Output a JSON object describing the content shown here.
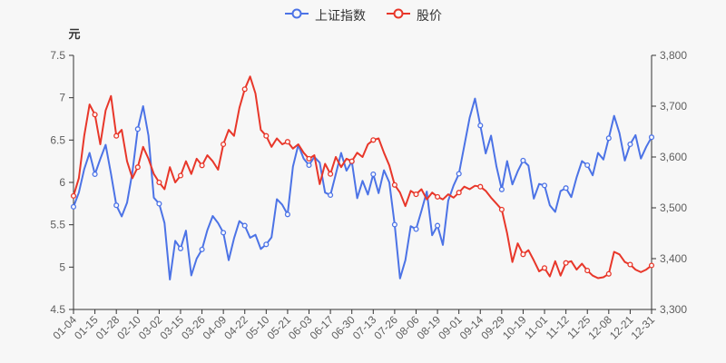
{
  "legend": {
    "items": [
      {
        "label": "上证指数",
        "color": "#4c73e6"
      },
      {
        "label": "股价",
        "color": "#e8372a"
      }
    ]
  },
  "chart_data": {
    "type": "line",
    "title": "",
    "unit_label": "元",
    "background": "#f7f7f7",
    "grid": false,
    "legend_position": "top-center",
    "marker_every": 4,
    "categories": [
      "01-04",
      "01-15",
      "01-28",
      "02-10",
      "03-02",
      "03-15",
      "03-26",
      "04-09",
      "04-22",
      "05-10",
      "05-21",
      "06-03",
      "06-17",
      "06-30",
      "07-13",
      "07-26",
      "08-06",
      "08-19",
      "09-01",
      "09-14",
      "09-29",
      "10-19",
      "11-01",
      "11-12",
      "11-25",
      "12-08",
      "12-21",
      "12-31"
    ],
    "axes": {
      "left": {
        "unit": "元",
        "min": 4.5,
        "max": 7.5,
        "ticks": [
          "7.5",
          "7",
          "6.5",
          "6",
          "5.5",
          "5",
          "4.5"
        ]
      },
      "right": {
        "min": 3300,
        "max": 3800,
        "ticks": [
          "3,800",
          "3,700",
          "3,600",
          "3,500",
          "3,400",
          "3,300"
        ]
      }
    },
    "series": [
      {
        "name": "上证指数",
        "axis": "right",
        "color": "#4c73e6",
        "values": [
          3502,
          3530,
          3576,
          3608,
          3566,
          3596,
          3624,
          3567,
          3505,
          3483,
          3510,
          3570,
          3655,
          3700,
          3642,
          3520,
          3508,
          3470,
          3359,
          3435,
          3420,
          3455,
          3367,
          3400,
          3418,
          3456,
          3484,
          3470,
          3451,
          3397,
          3440,
          3474,
          3465,
          3441,
          3447,
          3419,
          3428,
          3442,
          3517,
          3506,
          3487,
          3581,
          3624,
          3597,
          3584,
          3600,
          3589,
          3530,
          3525,
          3566,
          3608,
          3573,
          3591,
          3519,
          3553,
          3526,
          3566,
          3529,
          3574,
          3550,
          3467,
          3361,
          3397,
          3464,
          3458,
          3494,
          3532,
          3446,
          3465,
          3427,
          3514,
          3544,
          3567,
          3622,
          3677,
          3715,
          3662,
          3607,
          3642,
          3582,
          3536,
          3592,
          3546,
          3572,
          3593,
          3583,
          3518,
          3547,
          3544,
          3505,
          3492,
          3533,
          3539,
          3521,
          3560,
          3592,
          3584,
          3564,
          3608,
          3595,
          3637,
          3681,
          3647,
          3593,
          3625,
          3643,
          3597,
          3620,
          3639
        ]
      },
      {
        "name": "股价",
        "axis": "left",
        "color": "#e8372a",
        "values": [
          5.84,
          6.05,
          6.55,
          6.92,
          6.8,
          6.45,
          6.85,
          7.02,
          6.55,
          6.62,
          6.25,
          6.05,
          6.18,
          6.42,
          6.28,
          6.1,
          6.0,
          5.92,
          6.18,
          6.0,
          6.08,
          6.25,
          6.1,
          6.28,
          6.2,
          6.32,
          6.25,
          6.15,
          6.45,
          6.62,
          6.55,
          6.88,
          7.1,
          7.25,
          7.05,
          6.62,
          6.55,
          6.42,
          6.52,
          6.45,
          6.48,
          6.4,
          6.45,
          6.35,
          6.28,
          6.32,
          5.98,
          6.22,
          6.1,
          6.3,
          6.18,
          6.28,
          6.25,
          6.35,
          6.3,
          6.45,
          6.5,
          6.52,
          6.35,
          6.2,
          5.97,
          5.88,
          5.72,
          5.9,
          5.86,
          5.92,
          5.8,
          5.88,
          5.83,
          5.8,
          5.86,
          5.82,
          5.88,
          5.95,
          5.92,
          5.96,
          5.95,
          5.9,
          5.82,
          5.75,
          5.68,
          5.4,
          5.06,
          5.28,
          5.15,
          5.2,
          5.08,
          4.95,
          4.99,
          4.89,
          5.07,
          4.9,
          5.05,
          5.07,
          4.97,
          5.04,
          4.96,
          4.9,
          4.87,
          4.88,
          4.92,
          5.18,
          5.15,
          5.06,
          5.03,
          4.97,
          4.94,
          4.97,
          5.02
        ]
      }
    ]
  },
  "style": {
    "axis_line_color": "#333333",
    "tick_label_color": "#5e5e5e",
    "marker_fill": "#fdfdfd"
  }
}
